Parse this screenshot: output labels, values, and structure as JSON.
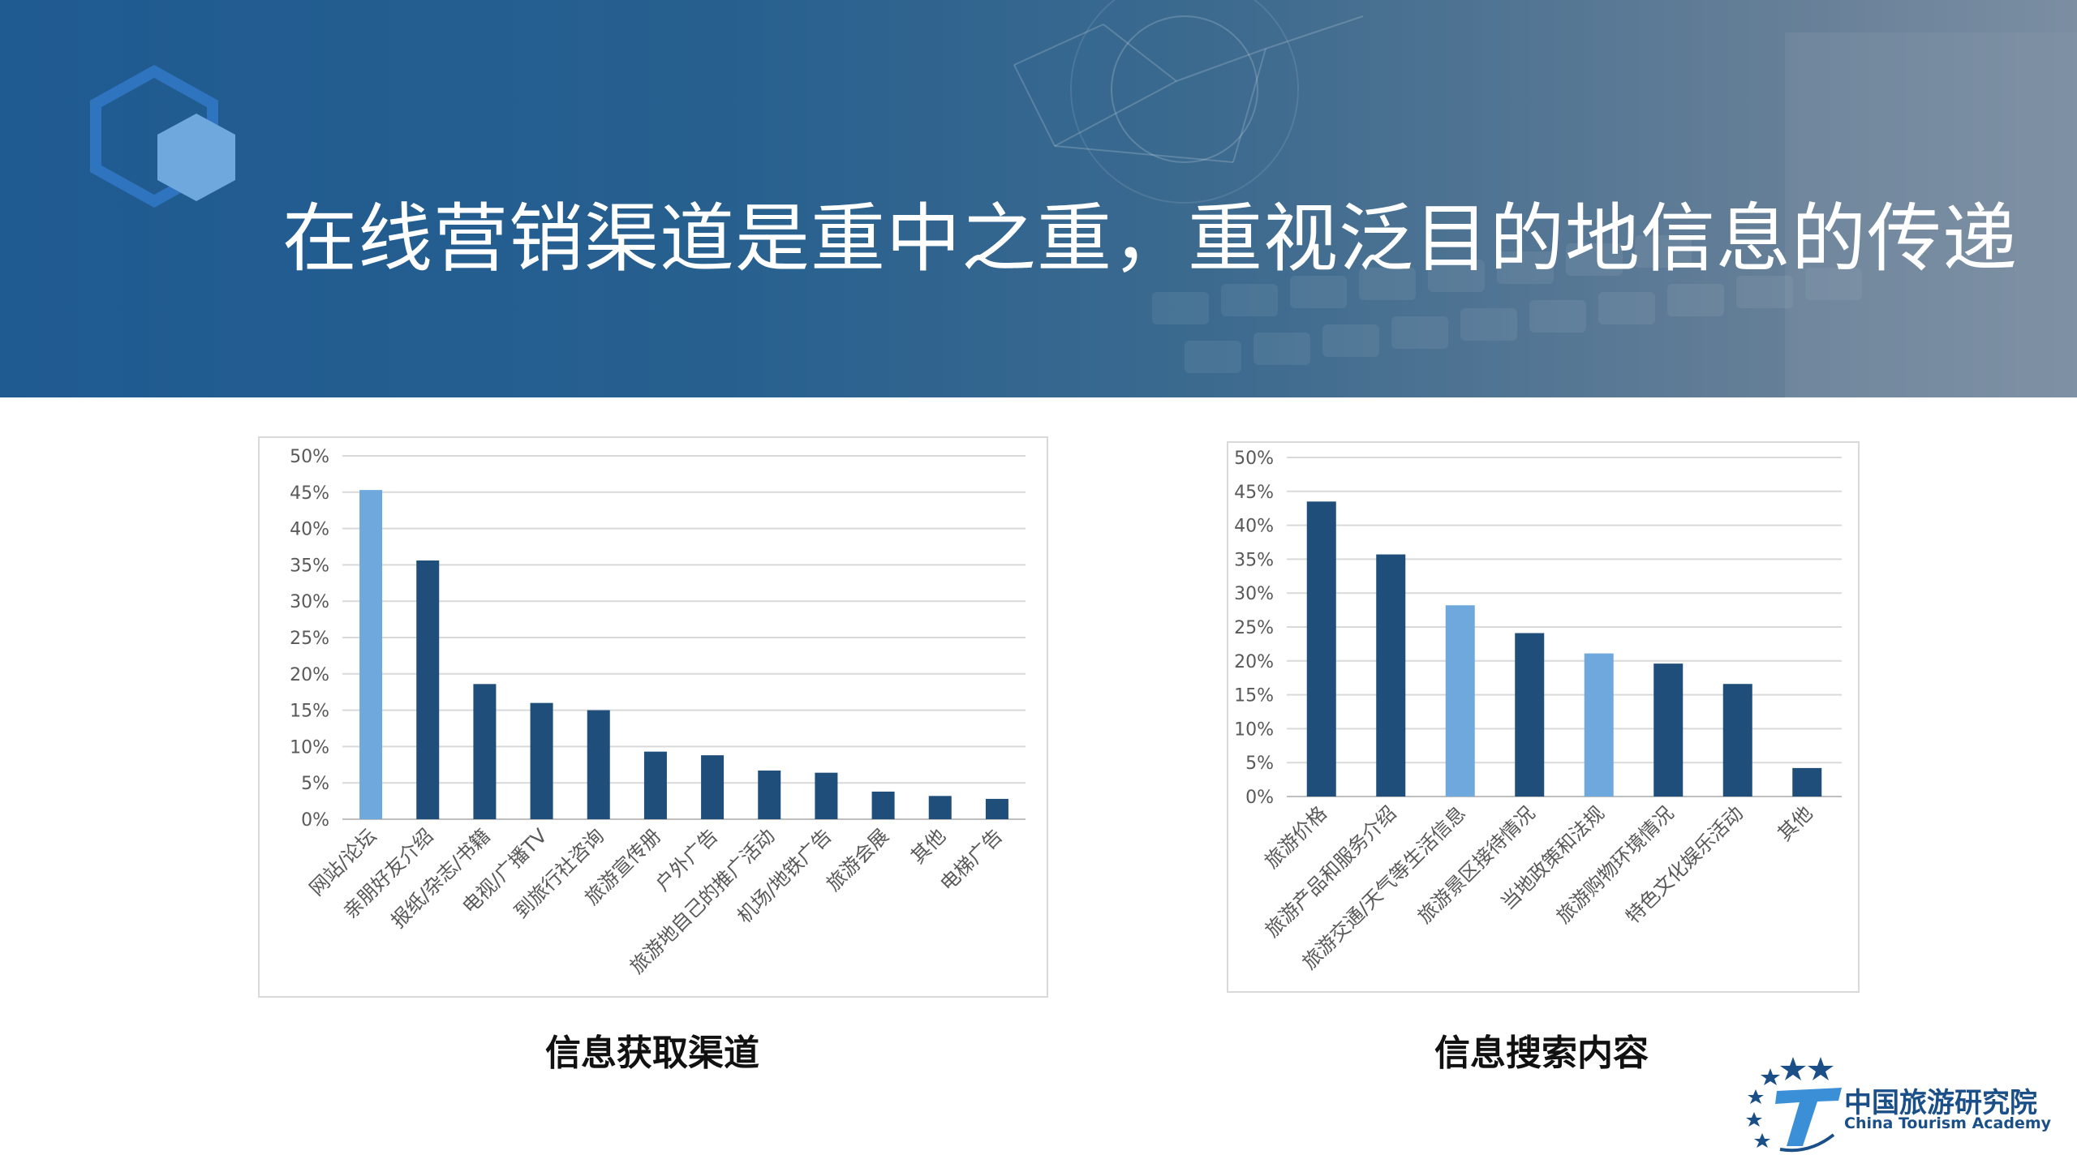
{
  "slide": {
    "title": "在线营销渠道是重中之重，重视泛目的地信息的传递"
  },
  "colors": {
    "dark_bar": "#1f4e7a",
    "light_bar": "#6fa8dc",
    "banner": "#1f5a91"
  },
  "chart_data": [
    {
      "type": "bar",
      "caption": "信息获取渠道",
      "categories": [
        "网站/论坛",
        "亲朋好友介绍",
        "报纸/杂志/书籍",
        "电视/广播TV",
        "到旅行社咨询",
        "旅游宣传册",
        "户外广告",
        "旅游地自己的推广活动",
        "机场/地铁广告",
        "旅游会展",
        "其他",
        "电梯广告"
      ],
      "values": [
        45.3,
        35.6,
        18.6,
        16.0,
        15.0,
        9.3,
        8.8,
        6.7,
        6.4,
        3.8,
        3.2,
        2.8
      ],
      "highlight": [
        0
      ],
      "yticks": [
        "0%",
        "5%",
        "10%",
        "15%",
        "20%",
        "25%",
        "30%",
        "35%",
        "40%",
        "45%",
        "50%"
      ],
      "ylim": [
        0,
        50
      ],
      "grid": true
    },
    {
      "type": "bar",
      "caption": "信息搜索内容",
      "categories": [
        "旅游价格",
        "旅游产品和服务介绍",
        "旅游交通/天气等生活信息",
        "旅游景区接待情况",
        "当地政策和法规",
        "旅游购物环境情况",
        "特色文化娱乐活动",
        "其他"
      ],
      "values": [
        43.5,
        35.7,
        28.2,
        24.1,
        21.1,
        19.6,
        16.6,
        4.2
      ],
      "highlight": [
        2,
        4
      ],
      "yticks": [
        "0%",
        "5%",
        "10%",
        "15%",
        "20%",
        "25%",
        "30%",
        "35%",
        "40%",
        "45%",
        "50%"
      ],
      "ylim": [
        0,
        50
      ],
      "grid": true
    }
  ],
  "logo": {
    "name_cn": "中国旅游研究院",
    "name_en": "China Tourism Academy"
  }
}
